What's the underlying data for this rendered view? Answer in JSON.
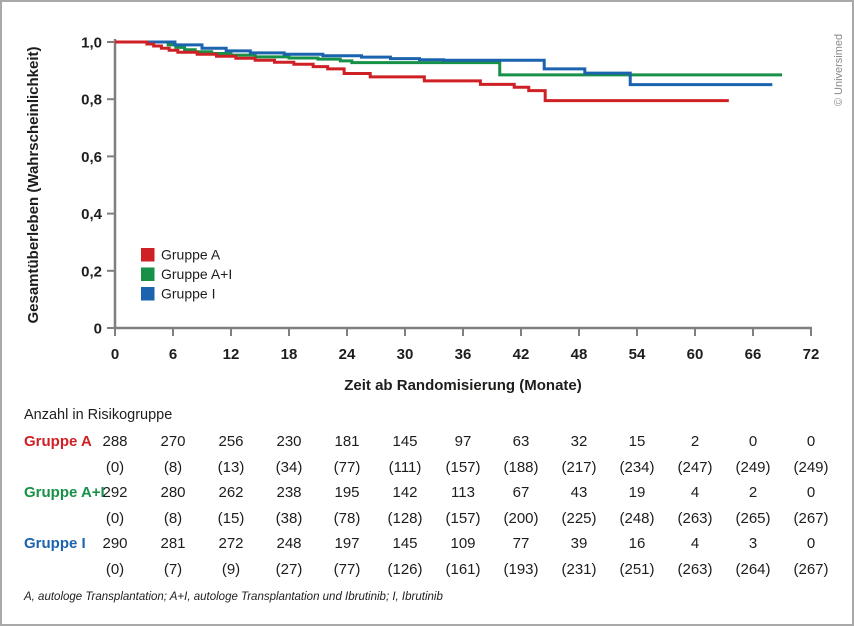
{
  "copyright": "© Universimed",
  "chart_data": {
    "type": "line",
    "subtype": "kaplan-meier-step",
    "title": "",
    "xlabel": "Zeit ab Randomisierung (Monate)",
    "ylabel": "Gesamtüberleben (Wahrscheinlichkeit)",
    "xlim": [
      0,
      72
    ],
    "ylim": [
      0,
      1.0
    ],
    "xticks": [
      0,
      6,
      12,
      18,
      24,
      30,
      36,
      42,
      48,
      54,
      60,
      66,
      72
    ],
    "yticks": [
      {
        "value": 0,
        "label": "0"
      },
      {
        "value": 0.2,
        "label": "0,2"
      },
      {
        "value": 0.4,
        "label": "0,4"
      },
      {
        "value": 0.6,
        "label": "0,6"
      },
      {
        "value": 0.8,
        "label": "0,8"
      },
      {
        "value": 1.0,
        "label": "1,0"
      }
    ],
    "grid": false,
    "legend_position": "inside-lower-left",
    "series": [
      {
        "name": "Gruppe A",
        "color": "#cf2026",
        "start_value": 1.0,
        "steps": [
          [
            3.3,
            0.993
          ],
          [
            4.0,
            0.986
          ],
          [
            4.8,
            0.978
          ],
          [
            5.6,
            0.971
          ],
          [
            6.5,
            0.964
          ],
          [
            8.5,
            0.957
          ],
          [
            10.5,
            0.95
          ],
          [
            12.5,
            0.943
          ],
          [
            14.5,
            0.936
          ],
          [
            16.5,
            0.929
          ],
          [
            18.5,
            0.922
          ],
          [
            20.5,
            0.914
          ],
          [
            22.0,
            0.906
          ],
          [
            23.7,
            0.89
          ],
          [
            26.4,
            0.878
          ],
          [
            32.0,
            0.864
          ],
          [
            37.8,
            0.852
          ],
          [
            41.3,
            0.842
          ],
          [
            42.8,
            0.83
          ],
          [
            44.5,
            0.795
          ]
        ],
        "end_month": 63.5
      },
      {
        "name": "Gruppe A+I",
        "color": "#169147",
        "start_value": 1.0,
        "steps": [
          [
            5.5,
            0.99
          ],
          [
            6.3,
            0.981
          ],
          [
            7.2,
            0.973
          ],
          [
            8.3,
            0.966
          ],
          [
            10.0,
            0.96
          ],
          [
            12.0,
            0.954
          ],
          [
            14.5,
            0.948
          ],
          [
            18.0,
            0.944
          ],
          [
            21.0,
            0.94
          ],
          [
            23.3,
            0.934
          ],
          [
            24.5,
            0.928
          ],
          [
            39.8,
            0.885
          ]
        ],
        "end_month": 69.0
      },
      {
        "name": "Gruppe I",
        "color": "#1c63af",
        "start_value": 1.0,
        "steps": [
          [
            6.2,
            0.99
          ],
          [
            9.0,
            0.978
          ],
          [
            11.5,
            0.969
          ],
          [
            14.0,
            0.962
          ],
          [
            17.5,
            0.957
          ],
          [
            21.5,
            0.952
          ],
          [
            25.5,
            0.947
          ],
          [
            28.5,
            0.942
          ],
          [
            31.5,
            0.938
          ],
          [
            34.0,
            0.936
          ],
          [
            44.4,
            0.906
          ],
          [
            48.6,
            0.891
          ],
          [
            53.3,
            0.851
          ]
        ],
        "end_month": 68.0
      }
    ]
  },
  "risk_table": {
    "title": "Anzahl in Risikogruppe",
    "columns": [
      0,
      6,
      12,
      18,
      24,
      30,
      36,
      42,
      48,
      54,
      60,
      66,
      72
    ],
    "rows": [
      {
        "label": "Gruppe A",
        "color": "#cf2026",
        "at_risk": [
          "288",
          "270",
          "256",
          "230",
          "181",
          "145",
          "97",
          "63",
          "32",
          "15",
          "2",
          "0",
          "0"
        ],
        "events": [
          "(0)",
          "(8)",
          "(13)",
          "(34)",
          "(77)",
          "(111)",
          "(157)",
          "(188)",
          "(217)",
          "(234)",
          "(247)",
          "(249)",
          "(249)"
        ]
      },
      {
        "label": "Gruppe A+I",
        "color": "#169147",
        "at_risk": [
          "292",
          "280",
          "262",
          "238",
          "195",
          "142",
          "113",
          "67",
          "43",
          "19",
          "4",
          "2",
          "0"
        ],
        "events": [
          "(0)",
          "(8)",
          "(15)",
          "(38)",
          "(78)",
          "(128)",
          "(157)",
          "(200)",
          "(225)",
          "(248)",
          "(263)",
          "(265)",
          "(267)"
        ]
      },
      {
        "label": "Gruppe I",
        "color": "#1c63af",
        "at_risk": [
          "290",
          "281",
          "272",
          "248",
          "197",
          "145",
          "109",
          "77",
          "39",
          "16",
          "4",
          "3",
          "0"
        ],
        "events": [
          "(0)",
          "(7)",
          "(9)",
          "(27)",
          "(77)",
          "(126)",
          "(161)",
          "(193)",
          "(231)",
          "(251)",
          "(263)",
          "(264)",
          "(267)"
        ]
      }
    ]
  },
  "footnote": "A, autologe Transplantation; A+I, autologe Transplantation und Ibrutinib; I, Ibrutinib"
}
